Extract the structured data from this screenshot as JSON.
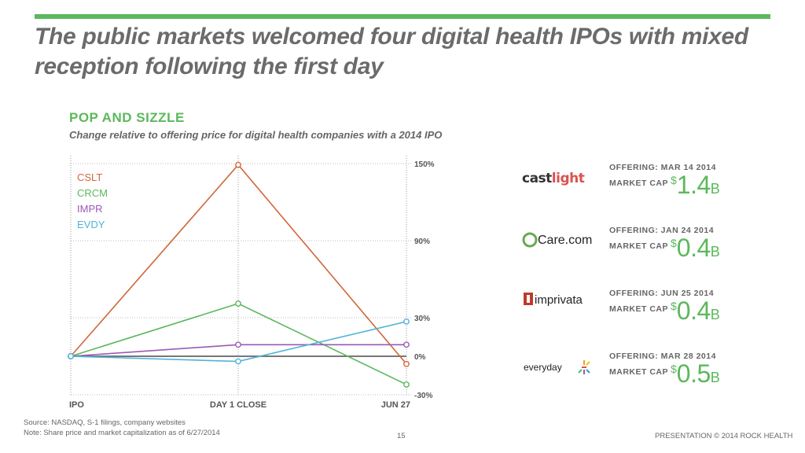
{
  "slide": {
    "title": "The public markets welcomed four digital health IPOs with mixed reception following the first day",
    "source": "Source: NASDAQ, S-1 filings, company websites",
    "note": "Note: Share price and market capitalization as of 6/27/2014",
    "page": "15",
    "footer": "PRESENTATION © 2014 ROCK HEALTH"
  },
  "chart_data": {
    "type": "line",
    "title": "POP AND SIZZLE",
    "subtitle": "Change relative to offering price for digital health companies with a 2014 IPO",
    "categories": [
      "IPO",
      "DAY 1 CLOSE",
      "JUN 27"
    ],
    "y_ticks": [
      {
        "value": 150,
        "label": "150%"
      },
      {
        "value": 90,
        "label": "90%"
      },
      {
        "value": 30,
        "label": "30%"
      },
      {
        "value": 0,
        "label": "0%"
      },
      {
        "value": -30,
        "label": "-30%"
      }
    ],
    "ylim": [
      -30,
      150
    ],
    "grid": true,
    "legend_position": "top-left",
    "series": [
      {
        "name": "CSLT",
        "values": [
          0,
          149,
          -6
        ],
        "color": "#d2673a"
      },
      {
        "name": "CRCM",
        "values": [
          0,
          41,
          -22
        ],
        "color": "#5cb85c"
      },
      {
        "name": "IMPR",
        "values": [
          0,
          9,
          9
        ],
        "color": "#9b59b6"
      },
      {
        "name": "EVDY",
        "values": [
          0,
          -4,
          27
        ],
        "color": "#4fb3d9"
      }
    ]
  },
  "companies": [
    {
      "logo_text": "castlight",
      "offering": "OFFERING: MAR 14 2014",
      "mcap_label": "MARKET CAP",
      "currency": "$",
      "value": "1.4",
      "unit": "B"
    },
    {
      "logo_text": "Care.com",
      "offering": "OFFERING: JAN 24 2014",
      "mcap_label": "MARKET CAP",
      "currency": "$",
      "value": "0.4",
      "unit": "B"
    },
    {
      "logo_text": "imprivata",
      "offering": "OFFERING: JUN 25 2014",
      "mcap_label": "MARKET CAP",
      "currency": "$",
      "value": "0.4",
      "unit": "B"
    },
    {
      "logo_text": "everyday",
      "offering": "OFFERING: MAR 28 2014",
      "mcap_label": "MARKET CAP",
      "currency": "$",
      "value": "0.5",
      "unit": "B"
    }
  ]
}
